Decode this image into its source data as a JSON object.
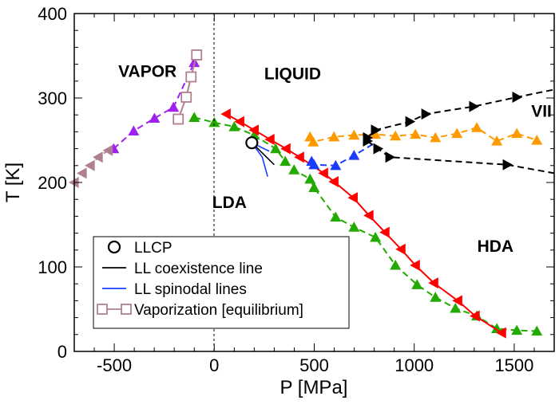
{
  "chart_data": {
    "type": "scatter",
    "xlabel": "P [MPa]",
    "ylabel": "T [K]",
    "xlim": [
      -700,
      1700
    ],
    "ylim": [
      0,
      400
    ],
    "xticks": [
      -500,
      0,
      500,
      1000,
      1500
    ],
    "yticks": [
      0,
      100,
      200,
      300,
      400
    ],
    "grid": false,
    "legend_position": "bottom-left",
    "region_labels": [
      {
        "text": "VAPOR",
        "x": -480,
        "y": 325
      },
      {
        "text": "LIQUID",
        "x": 250,
        "y": 322
      },
      {
        "text": "LDA",
        "x": -10,
        "y": 170
      },
      {
        "text": "HDA",
        "x": 1315,
        "y": 118
      },
      {
        "text": "VII",
        "x": 1585,
        "y": 278
      }
    ],
    "series": [
      {
        "marker": "triangle-up",
        "color": "#a020f0",
        "line": "dashed",
        "x": [
          -503,
          -403,
          -299,
          -204,
          -100
        ],
        "y": [
          240,
          261,
          276,
          289,
          342
        ]
      },
      {
        "marker": "triangle-left",
        "color": "#b08090",
        "line": "dashed",
        "x": [
          -700,
          -660,
          -620,
          -580,
          -530
        ],
        "y": [
          200,
          211,
          220,
          230,
          238
        ]
      },
      {
        "marker": "triangle-up",
        "color": "#22aa00",
        "line": "dashed",
        "x": [
          -100,
          0,
          100,
          200,
          307,
          355,
          399,
          479,
          499,
          607,
          699,
          806,
          906,
          1014,
          1106,
          1206,
          1313,
          1413,
          1513,
          1613
        ],
        "y": [
          277,
          271,
          266,
          256,
          240,
          225,
          215,
          204,
          194,
          159,
          147,
          135,
          102,
          79,
          64,
          51,
          42,
          27,
          25,
          24
        ]
      },
      {
        "marker": "triangle-left",
        "color": "#ff0000",
        "line": "solid",
        "x": [
          60,
          128,
          200,
          279,
          359,
          427,
          547,
          599,
          695,
          774,
          854,
          934,
          1006,
          1098,
          1218,
          1305,
          1437
        ],
        "y": [
          281,
          272,
          262,
          251,
          240,
          230,
          211,
          201,
          182,
          161,
          141,
          121,
          102,
          81,
          60,
          42,
          22
        ]
      },
      {
        "marker": "triangle-up",
        "color": "#ff9900",
        "line": "dashed",
        "x": [
          479,
          495,
          599,
          699,
          806,
          906,
          1006,
          1106,
          1214,
          1313,
          1413,
          1513,
          1613
        ],
        "y": [
          254,
          248,
          254,
          256,
          257,
          255,
          257,
          253,
          258,
          265,
          249,
          258,
          250
        ]
      },
      {
        "marker": "triangle-up",
        "color": "#1a3cff",
        "line": "dashed",
        "x": [
          487,
          499,
          607,
          699,
          798
        ],
        "y": [
          225,
          221,
          220,
          232,
          246
        ],
        "marker_count": 4
      },
      {
        "marker": "triangle-right",
        "color": "#000000",
        "line": "dashed",
        "x": [
          766,
          806,
          978,
          1058,
          1297,
          1513,
          1700
        ],
        "y": [
          253,
          262,
          272,
          281,
          290,
          301,
          310
        ],
        "marker_count": 6
      },
      {
        "marker": "triangle-right",
        "color": "#000000",
        "line": "dashed",
        "x": [
          766,
          818,
          878,
          1465,
          1700
        ],
        "y": [
          249,
          240,
          230,
          221,
          211
        ],
        "marker_count": 4
      },
      {
        "name": "Vaporization [equilibrium]",
        "marker": "square-open",
        "color": "#b08090",
        "line": "solid",
        "x": [
          -180,
          -140,
          -116,
          -88
        ],
        "y": [
          275,
          301,
          325,
          351
        ]
      },
      {
        "name": "LL coexistence line",
        "marker": "none",
        "color": "#000000",
        "line": "solid",
        "x": [
          188,
          300
        ],
        "y": [
          247,
          221
        ]
      },
      {
        "name": "LL spinodal lines",
        "marker": "none",
        "color": "#1a3cff",
        "line": "solid",
        "x": [
          188,
          240,
          267
        ],
        "y": [
          247,
          230,
          207
        ]
      },
      {
        "marker": "none",
        "color": "#1a3cff",
        "line": "solid",
        "x": [
          188,
          275
        ],
        "y": [
          247,
          237
        ]
      },
      {
        "name": "LLCP",
        "marker": "circle-open",
        "color": "#000000",
        "line": "none",
        "x": [
          188
        ],
        "y": [
          247
        ]
      }
    ],
    "legend": [
      {
        "label": "LLCP",
        "symbol": "circle-open",
        "color": "#000000"
      },
      {
        "label": "LL coexistence line",
        "symbol": "line",
        "color": "#000000"
      },
      {
        "label": "LL spinodal lines",
        "symbol": "line",
        "color": "#1a3cff"
      },
      {
        "label": "Vaporization [equilibrium]",
        "symbol": "square-line",
        "color": "#b08090"
      }
    ]
  }
}
